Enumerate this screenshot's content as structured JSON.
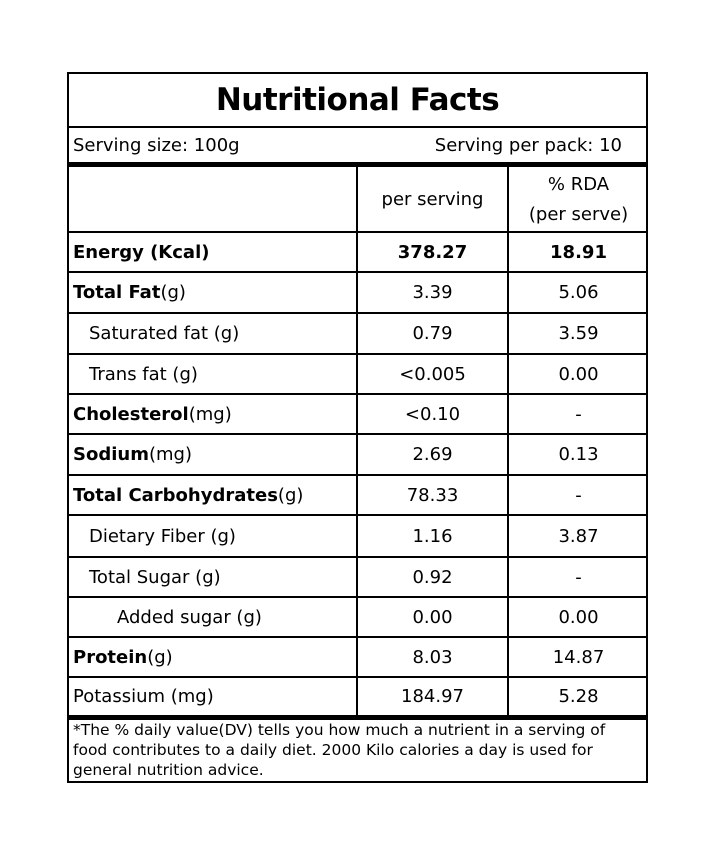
{
  "title": "Nutritional Facts",
  "serving": {
    "size": "Serving size: 100g",
    "per_pack": "Serving per pack: 10"
  },
  "columns": {
    "per_serving": "per serving",
    "rda_line1": "% RDA",
    "rda_line2": "(per serve)"
  },
  "rows": [
    {
      "name": "Energy (Kcal)",
      "unit": "",
      "per_serving": "378.27",
      "rda": "18.91"
    },
    {
      "name": "Total Fat",
      "unit": " (g)",
      "per_serving": "3.39",
      "rda": "5.06"
    },
    {
      "name": "Saturated fat (g)",
      "unit": "",
      "per_serving": "0.79",
      "rda": "3.59"
    },
    {
      "name": "Trans fat (g)",
      "unit": "",
      "per_serving": "<0.005",
      "rda": "0.00"
    },
    {
      "name": "Cholesterol",
      "unit": " (mg)",
      "per_serving": "<0.10",
      "rda": "-"
    },
    {
      "name": "Sodium",
      "unit": " (mg)",
      "per_serving": "2.69",
      "rda": "0.13"
    },
    {
      "name": "Total Carbohydrates",
      "unit": " (g)",
      "per_serving": "78.33",
      "rda": "-"
    },
    {
      "name": "Dietary Fiber (g)",
      "unit": "",
      "per_serving": "1.16",
      "rda": "3.87"
    },
    {
      "name": "Total Sugar (g)",
      "unit": "",
      "per_serving": "0.92",
      "rda": "-"
    },
    {
      "name": "Added sugar (g)",
      "unit": "",
      "per_serving": "0.00",
      "rda": "0.00"
    },
    {
      "name": "Protein",
      "unit": " (g)",
      "per_serving": "8.03",
      "rda": "14.87"
    },
    {
      "name": "Potassium (mg)",
      "unit": "",
      "per_serving": "184.97",
      "rda": "5.28"
    }
  ],
  "footnote": "*The % daily value(DV) tells you how much a nutrient in a serving of food contributes to a daily diet. 2000 Kilo calories a day is used for general nutrition advice."
}
